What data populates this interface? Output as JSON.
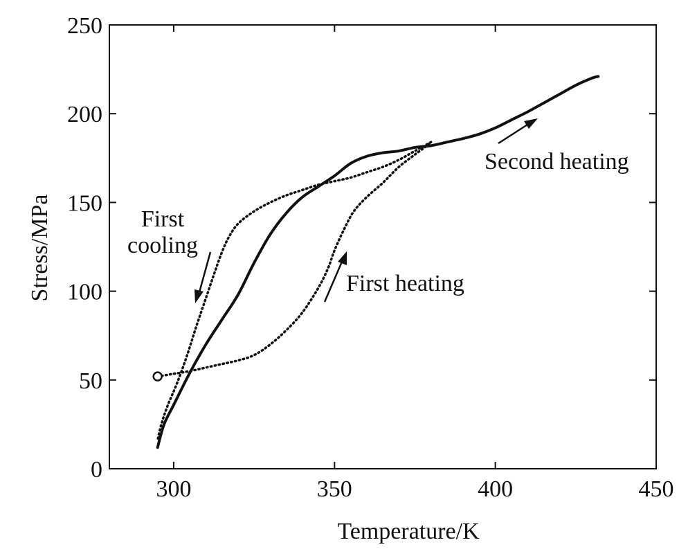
{
  "chart_data": {
    "type": "line",
    "title": "",
    "xlabel": "Temperature/K",
    "ylabel": "Stress/MPa",
    "xlim": [
      280,
      450
    ],
    "ylim": [
      0,
      250
    ],
    "x_ticks": [
      300,
      350,
      400,
      450
    ],
    "y_ticks": [
      0,
      50,
      100,
      150,
      200,
      250
    ],
    "grid": false,
    "legend": "none",
    "series": [
      {
        "style": "dotted",
        "label_ref": "first_heating",
        "points": [
          [
            295,
            52
          ],
          [
            300,
            53.5
          ],
          [
            305,
            55
          ],
          [
            310,
            57
          ],
          [
            315,
            59
          ],
          [
            320,
            61
          ],
          [
            325,
            64
          ],
          [
            330,
            70
          ],
          [
            335,
            78
          ],
          [
            340,
            88
          ],
          [
            345,
            102
          ],
          [
            348,
            113
          ],
          [
            350,
            123
          ],
          [
            353,
            135
          ],
          [
            356,
            145
          ],
          [
            360,
            153
          ],
          [
            365,
            161
          ],
          [
            370,
            170
          ],
          [
            375,
            177
          ],
          [
            378,
            181
          ],
          [
            380,
            184
          ]
        ]
      },
      {
        "style": "dotted",
        "label_ref": "first_cooling",
        "points": [
          [
            380,
            184
          ],
          [
            375,
            179
          ],
          [
            370,
            174
          ],
          [
            365,
            170
          ],
          [
            360,
            167
          ],
          [
            355,
            164
          ],
          [
            350,
            162
          ],
          [
            345,
            160
          ],
          [
            340,
            157
          ],
          [
            335,
            154
          ],
          [
            330,
            150
          ],
          [
            325,
            145
          ],
          [
            320,
            138
          ],
          [
            317,
            130
          ],
          [
            315,
            122
          ],
          [
            313,
            112
          ],
          [
            310,
            96
          ],
          [
            307,
            80
          ],
          [
            304,
            63
          ],
          [
            301,
            48
          ],
          [
            298,
            35
          ],
          [
            296,
            24
          ],
          [
            295,
            16
          ]
        ]
      },
      {
        "style": "solid",
        "label_ref": "second_heating",
        "points": [
          [
            295,
            12
          ],
          [
            297,
            25
          ],
          [
            300,
            36
          ],
          [
            305,
            54
          ],
          [
            310,
            70
          ],
          [
            315,
            84
          ],
          [
            320,
            98
          ],
          [
            325,
            116
          ],
          [
            330,
            132
          ],
          [
            335,
            144
          ],
          [
            340,
            153
          ],
          [
            345,
            159
          ],
          [
            350,
            165
          ],
          [
            355,
            172
          ],
          [
            360,
            176
          ],
          [
            365,
            178
          ],
          [
            370,
            179
          ],
          [
            375,
            181
          ],
          [
            380,
            182
          ],
          [
            385,
            184
          ],
          [
            390,
            186
          ],
          [
            395,
            188.5
          ],
          [
            400,
            192
          ],
          [
            405,
            196.5
          ],
          [
            410,
            201
          ],
          [
            415,
            206
          ],
          [
            420,
            211
          ],
          [
            425,
            216
          ],
          [
            430,
            220
          ],
          [
            432,
            221
          ]
        ]
      }
    ],
    "start_marker": [
      295,
      52
    ],
    "annotations": {
      "first_heating": "First heating",
      "first_cooling_line1": "First",
      "first_cooling_line2": "cooling",
      "second_heating": "Second heating"
    }
  }
}
